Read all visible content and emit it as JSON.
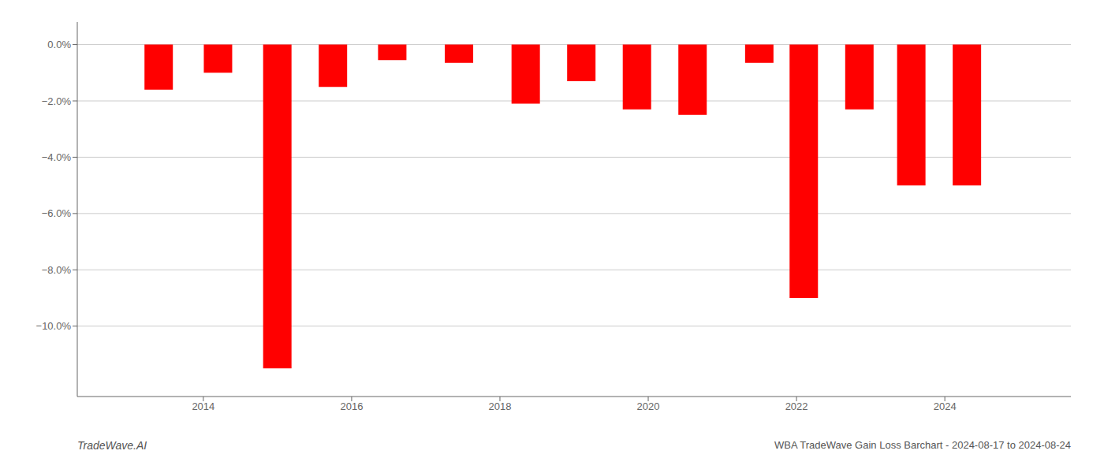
{
  "chart_data": {
    "type": "bar",
    "x": [
      2013.4,
      2014.2,
      2015.0,
      2015.75,
      2016.55,
      2017.45,
      2018.35,
      2019.1,
      2019.85,
      2020.6,
      2021.5,
      2022.1,
      2022.85,
      2023.55,
      2024.3
    ],
    "values": [
      -1.6,
      -1.0,
      -11.5,
      -1.5,
      -0.55,
      -0.65,
      -2.1,
      -1.3,
      -2.3,
      -2.5,
      -0.65,
      -9.0,
      -2.3,
      -5.0,
      -5.0
    ],
    "color": "#ff0000",
    "xlim": [
      2012.3,
      2025.7
    ],
    "ylim": [
      -12.5,
      0.8
    ],
    "xticks": [
      2014,
      2016,
      2018,
      2020,
      2022,
      2024
    ],
    "yticks": [
      {
        "value": 0.0,
        "label": "0.0%"
      },
      {
        "value": -2.0,
        "label": "−2.0%"
      },
      {
        "value": -4.0,
        "label": "−4.0%"
      },
      {
        "value": -6.0,
        "label": "−6.0%"
      },
      {
        "value": -8.0,
        "label": "−8.0%"
      },
      {
        "value": -10.0,
        "label": "−10.0%"
      }
    ],
    "grid": true,
    "annotations": [
      "TradeWave.AI",
      "WBA TradeWave Gain Loss Barchart - 2024-08-17 to 2024-08-24"
    ]
  }
}
